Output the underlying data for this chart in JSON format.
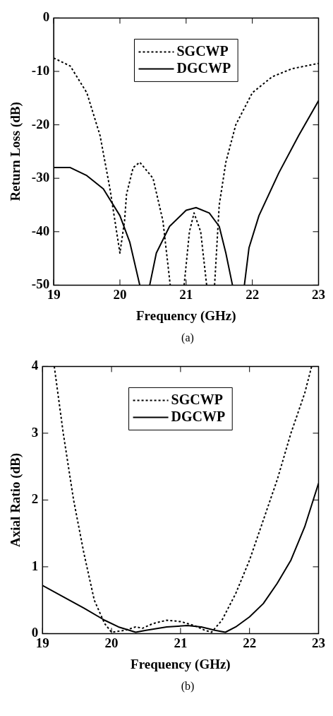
{
  "chart_data": [
    {
      "type": "line",
      "xlabel": "Frequency (GHz)",
      "ylabel": "Return Loss (dB)",
      "xlim": [
        19,
        23
      ],
      "ylim": [
        -50,
        0
      ],
      "xticks": [
        19,
        20,
        21,
        22,
        23
      ],
      "yticks": [
        -50,
        -40,
        -30,
        -20,
        -10,
        0
      ],
      "grid": false,
      "legend": "top",
      "marker": "none",
      "annotations": [
        "(a)"
      ],
      "series": [
        {
          "name": "SGCWP",
          "color": "#000000",
          "line_style": "dotted",
          "x": [
            19,
            19.25,
            19.5,
            19.7,
            19.85,
            19.95,
            20.0,
            20.07,
            20.1,
            20.2,
            20.3,
            20.5,
            20.65,
            20.76,
            20.8,
            20.97,
            21.05,
            21.12,
            21.22,
            21.31,
            21.35,
            21.43,
            21.5,
            21.6,
            21.75,
            22.0,
            22.3,
            22.6,
            23
          ],
          "values": [
            -7.5,
            -9,
            -14,
            -22,
            -32,
            -40,
            -44,
            -38,
            -33,
            -28,
            -27,
            -30,
            -38,
            -50,
            null,
            -50,
            -40,
            -36.5,
            -40,
            -50,
            null,
            -50,
            -35,
            -27,
            -20,
            -14,
            -11,
            -9.5,
            -8.5
          ]
        },
        {
          "name": "DGCWP",
          "color": "#000000",
          "line_style": "solid",
          "x": [
            19,
            19.25,
            19.5,
            19.75,
            20.0,
            20.15,
            20.3,
            20.38,
            20.45,
            20.55,
            20.75,
            21.0,
            21.15,
            21.35,
            21.5,
            21.6,
            21.7,
            21.8,
            21.88,
            21.95,
            22.1,
            22.4,
            22.7,
            23
          ],
          "values": [
            -28,
            -28,
            -29.5,
            -32,
            -37,
            -42,
            -50,
            null,
            -50,
            -44,
            -39,
            -36,
            -35.5,
            -36.5,
            -39,
            -44,
            -50,
            null,
            -50,
            -43,
            -37,
            -29,
            -22,
            -15.5
          ]
        }
      ]
    },
    {
      "type": "line",
      "xlabel": "Frequency (GHz)",
      "ylabel": "Axial Ratio (dB)",
      "xlim": [
        19,
        23
      ],
      "ylim": [
        0,
        4
      ],
      "xticks": [
        19,
        20,
        21,
        22,
        23
      ],
      "yticks": [
        0,
        1,
        2,
        3,
        4
      ],
      "grid": false,
      "legend": "top",
      "marker": "none",
      "annotations": [
        "(b)"
      ],
      "series": [
        {
          "name": "SGCWP",
          "color": "#000000",
          "line_style": "dotted",
          "x": [
            19.17,
            19.3,
            19.45,
            19.6,
            19.75,
            19.9,
            20.0,
            20.2,
            20.35,
            20.45,
            20.6,
            20.8,
            21.0,
            21.2,
            21.35,
            21.45,
            21.6,
            21.8,
            22.0,
            22.2,
            22.4,
            22.6,
            22.8,
            22.9
          ],
          "values": [
            4,
            3,
            2,
            1.2,
            0.5,
            0.15,
            0.02,
            0.05,
            0.1,
            0.08,
            0.15,
            0.2,
            0.18,
            0.12,
            0.05,
            0.02,
            0.2,
            0.6,
            1.1,
            1.7,
            2.3,
            3.0,
            3.6,
            4
          ]
        },
        {
          "name": "DGCWP",
          "color": "#000000",
          "line_style": "solid",
          "x": [
            19,
            19.3,
            19.6,
            19.9,
            20.1,
            20.35,
            20.5,
            20.8,
            21.1,
            21.3,
            21.5,
            21.65,
            21.8,
            22.0,
            22.2,
            22.4,
            22.6,
            22.8,
            23
          ],
          "values": [
            0.72,
            0.55,
            0.38,
            0.2,
            0.1,
            0.02,
            0.05,
            0.1,
            0.12,
            0.1,
            0.05,
            0.02,
            0.1,
            0.25,
            0.45,
            0.75,
            1.1,
            1.6,
            2.25
          ]
        }
      ]
    }
  ]
}
